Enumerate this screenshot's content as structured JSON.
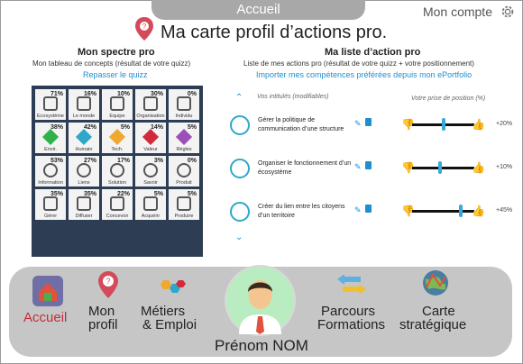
{
  "header": {
    "tab_label": "Accueil",
    "account_label": "Mon compte"
  },
  "title": "Ma carte profil d’actions pro.",
  "spectrum": {
    "title": "Mon spectre pro",
    "subtitle": "Mon tableau de concepts (résultat de votre quizz)",
    "link": "Repasser le quizz",
    "cells": [
      {
        "pct": "71%",
        "label": "Ecosystème",
        "color": "#555"
      },
      {
        "pct": "16%",
        "label": "Le monde",
        "color": "#555"
      },
      {
        "pct": "10%",
        "label": "Equipe",
        "color": "#555"
      },
      {
        "pct": "30%",
        "label": "Organisation",
        "color": "#555"
      },
      {
        "pct": "0%",
        "label": "Individu",
        "color": "#555"
      },
      {
        "pct": "38%",
        "label": "Envir.",
        "color": "#2db34a"
      },
      {
        "pct": "42%",
        "label": "Humain",
        "color": "#2fa7c9"
      },
      {
        "pct": "5%",
        "label": "Tech.",
        "color": "#f0a830"
      },
      {
        "pct": "14%",
        "label": "Valeur",
        "color": "#d12a3a"
      },
      {
        "pct": "5%",
        "label": "Règles",
        "color": "#9a50b8"
      },
      {
        "pct": "53%",
        "label": "Information",
        "color": "#555"
      },
      {
        "pct": "27%",
        "label": "Liens",
        "color": "#555"
      },
      {
        "pct": "17%",
        "label": "Solution",
        "color": "#555"
      },
      {
        "pct": "3%",
        "label": "Savoir",
        "color": "#555"
      },
      {
        "pct": "0%",
        "label": "Produit",
        "color": "#555"
      },
      {
        "pct": "35%",
        "label": "Gérer",
        "color": "#555"
      },
      {
        "pct": "35%",
        "label": "Diffuser",
        "color": "#555"
      },
      {
        "pct": "22%",
        "label": "Concevoir",
        "color": "#555"
      },
      {
        "pct": "5%",
        "label": "Acquérir",
        "color": "#555"
      },
      {
        "pct": "5%",
        "label": "Produire",
        "color": "#555"
      }
    ]
  },
  "actions": {
    "title": "Ma liste d’action pro",
    "subtitle": "Liste de mes actions pro (résultat de votre quizz + votre positionnement)",
    "link": "Importer mes compétences préférées depuis mon ePortfolio",
    "col_intitules": "Vos intitulés (modifiables)",
    "col_position": "Votre prise de position (%)",
    "items": [
      {
        "text": "Gérer la politique de communication d’une structure",
        "value": "+20%",
        "level": 0.5
      },
      {
        "text": "Organiser le fonctionnement d’un écosystème",
        "value": "+10%",
        "level": 0.45
      },
      {
        "text": "Créer du lien entre les citoyens d’un territoire",
        "value": "+45%",
        "level": 0.78
      }
    ]
  },
  "nav": {
    "accueil": "Accueil",
    "profil": [
      "Mon",
      "profil"
    ],
    "metiers": [
      "Métiers",
      "& Emploi"
    ],
    "parcours": [
      "Parcours",
      "Formations"
    ],
    "carte": [
      "Carte",
      "stratégique"
    ],
    "name": "Prénom NOM"
  }
}
